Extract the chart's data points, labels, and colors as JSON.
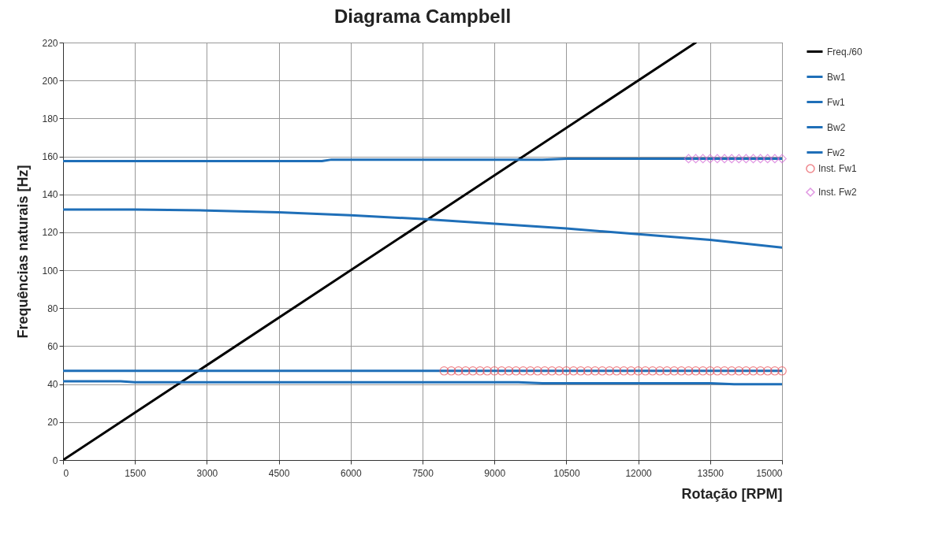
{
  "chart_data": {
    "type": "line",
    "title": "Diagrama Campbell",
    "xlabel": "Rotação [RPM]",
    "ylabel": "Frequências naturais [Hz]",
    "xlim": [
      0,
      15000
    ],
    "xticks": [
      0,
      1500,
      3000,
      4500,
      6000,
      7500,
      9000,
      10500,
      12000,
      13500,
      15000
    ],
    "ylim": [
      0,
      220
    ],
    "yticks": [
      0,
      20,
      40,
      60,
      80,
      100,
      120,
      140,
      160,
      180,
      200,
      220
    ],
    "grid": true,
    "legend": "right",
    "line_style": "solid",
    "series": [
      {
        "name": "Freq./60",
        "color": "#000000",
        "x": [
          0,
          13200
        ],
        "values": [
          0,
          220
        ]
      },
      {
        "name": "Bw1",
        "color": "#1f6fb8",
        "x": [
          0,
          1200,
          1500,
          9500,
          10000,
          13500,
          14000,
          15000
        ],
        "values": [
          41.5,
          41.5,
          41,
          41,
          40.5,
          40.5,
          40,
          40
        ]
      },
      {
        "name": "Fw1",
        "color": "#1f6fb8",
        "x": [
          0,
          15000
        ],
        "values": [
          47,
          47
        ]
      },
      {
        "name": "Bw2",
        "color": "#1f6fb8",
        "x": [
          0,
          1500,
          3000,
          4500,
          6000,
          7500,
          9000,
          10500,
          12000,
          13500,
          15000
        ],
        "values": [
          132,
          132,
          131.5,
          130.5,
          129,
          127,
          124.5,
          122,
          119,
          116,
          112
        ]
      },
      {
        "name": "Fw2",
        "color": "#1f6fb8",
        "x": [
          0,
          5400,
          5600,
          10000,
          10500,
          15000
        ],
        "values": [
          157.5,
          157.5,
          158.3,
          158.3,
          158.8,
          158.8
        ]
      },
      {
        "name": "Inst. Fw1",
        "type": "scatter",
        "marker": "circle",
        "color": "#e8535b",
        "x": [
          7950,
          8100,
          8250,
          8400,
          8550,
          8700,
          8850,
          9000,
          9150,
          9300,
          9450,
          9600,
          9750,
          9900,
          10050,
          10200,
          10350,
          10500,
          10650,
          10800,
          10950,
          11100,
          11250,
          11400,
          11550,
          11700,
          11850,
          12000,
          12150,
          12300,
          12450,
          12600,
          12750,
          12900,
          13050,
          13200,
          13350,
          13500,
          13650,
          13800,
          13950,
          14100,
          14250,
          14400,
          14550,
          14700,
          14850,
          15000
        ],
        "values": [
          47,
          47,
          47,
          47,
          47,
          47,
          47,
          47,
          47,
          47,
          47,
          47,
          47,
          47,
          47,
          47,
          47,
          47,
          47,
          47,
          47,
          47,
          47,
          47,
          47,
          47,
          47,
          47,
          47,
          47,
          47,
          47,
          47,
          47,
          47,
          47,
          47,
          47,
          47,
          47,
          47,
          47,
          47,
          47,
          47,
          47,
          47,
          47
        ]
      },
      {
        "name": "Inst. Fw2",
        "type": "scatter",
        "marker": "diamond",
        "color": "#d36ad6",
        "x": [
          13050,
          13200,
          13350,
          13500,
          13650,
          13800,
          13950,
          14100,
          14250,
          14400,
          14550,
          14700,
          14850,
          15000
        ],
        "values": [
          158.8,
          158.8,
          158.8,
          158.8,
          158.8,
          158.8,
          158.8,
          158.8,
          158.8,
          158.8,
          158.8,
          158.8,
          158.8,
          158.8
        ]
      }
    ]
  }
}
